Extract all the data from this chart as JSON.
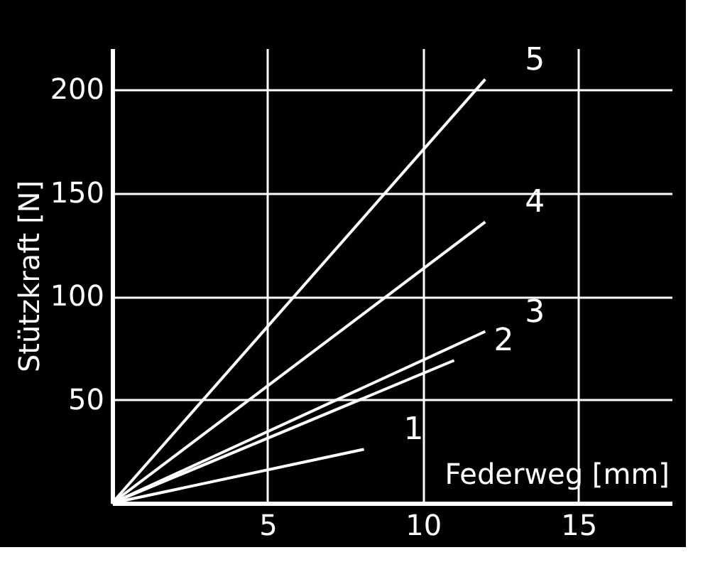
{
  "chart_data": {
    "type": "line",
    "xlabel": "Federweg [mm]",
    "ylabel": "Stützkraft [N]",
    "xlim": [
      0,
      18
    ],
    "ylim": [
      0,
      220
    ],
    "xticks": [
      5,
      10,
      15
    ],
    "yticks": [
      50,
      100,
      150,
      200
    ],
    "grid": true,
    "legend": false,
    "series": [
      {
        "name": "1",
        "color": "#ffffff",
        "x": [
          0,
          8.1
        ],
        "values": [
          0,
          26
        ]
      },
      {
        "name": "2",
        "color": "#ffffff",
        "x": [
          0,
          11
        ],
        "values": [
          0,
          69
        ]
      },
      {
        "name": "3",
        "color": "#ffffff",
        "x": [
          0,
          12
        ],
        "values": [
          0,
          83
        ]
      },
      {
        "name": "4",
        "color": "#ffffff",
        "x": [
          0,
          12
        ],
        "values": [
          0,
          136
        ]
      },
      {
        "name": "5",
        "color": "#ffffff",
        "x": [
          0,
          12
        ],
        "values": [
          0,
          205
        ]
      }
    ]
  }
}
